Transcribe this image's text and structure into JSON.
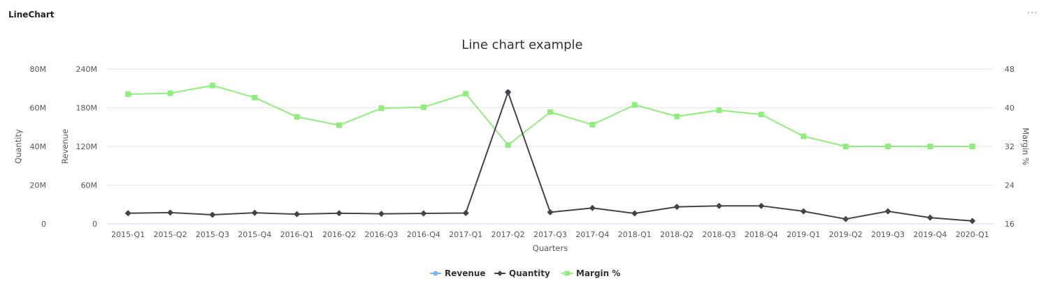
{
  "widget": {
    "title": "LineChart",
    "menu_label": "···"
  },
  "chart_data": {
    "type": "line",
    "title": "Line chart example",
    "xlabel": "Quarters",
    "categories": [
      "2015-Q1",
      "2015-Q2",
      "2015-Q3",
      "2015-Q4",
      "2016-Q1",
      "2016-Q2",
      "2016-Q3",
      "2016-Q4",
      "2017-Q1",
      "2017-Q2",
      "2017-Q3",
      "2017-Q4",
      "2018-Q1",
      "2018-Q2",
      "2018-Q3",
      "2018-Q4",
      "2019-Q1",
      "2019-Q2",
      "2019-Q3",
      "2019-Q4",
      "2020-Q1"
    ],
    "axes": {
      "quantity": {
        "label": "Quantity",
        "min": 0,
        "max": 80000000,
        "ticks": [
          "0",
          "20M",
          "40M",
          "60M",
          "80M"
        ]
      },
      "revenue": {
        "label": "Revenue",
        "min": 0,
        "max": 240000000,
        "ticks": [
          "0",
          "60M",
          "120M",
          "180M",
          "240M"
        ]
      },
      "margin": {
        "label": "Margin %",
        "min": 16,
        "max": 48,
        "ticks": [
          "16",
          "24",
          "32",
          "40",
          "48"
        ]
      }
    },
    "series": [
      {
        "name": "Revenue",
        "axis": "revenue",
        "color": "#7cb5ec",
        "marker": "circle",
        "values": [
          null,
          null,
          null,
          null,
          null,
          null,
          null,
          null,
          null,
          204000000,
          null,
          null,
          null,
          null,
          null,
          null,
          null,
          null,
          null,
          null,
          null
        ]
      },
      {
        "name": "Quantity",
        "axis": "quantity",
        "color": "#434348",
        "marker": "diamond",
        "values": [
          5500000,
          5800000,
          4700000,
          5700000,
          5000000,
          5500000,
          5200000,
          5400000,
          5600000,
          68000000,
          6000000,
          8200000,
          5400000,
          8800000,
          9300000,
          9300000,
          6500000,
          2500000,
          6500000,
          3200000,
          1500000
        ]
      },
      {
        "name": "Margin %",
        "axis": "margin",
        "color": "#90ed7d",
        "marker": "square",
        "values": [
          42.8,
          43.0,
          44.6,
          42.1,
          38.1,
          36.4,
          39.9,
          40.1,
          42.9,
          32.3,
          39.1,
          36.5,
          40.6,
          38.2,
          39.5,
          38.6,
          34.1,
          32.0,
          32.0,
          32.0,
          32.0
        ]
      }
    ],
    "legend": {
      "position": "bottom-center"
    },
    "grid": true
  }
}
